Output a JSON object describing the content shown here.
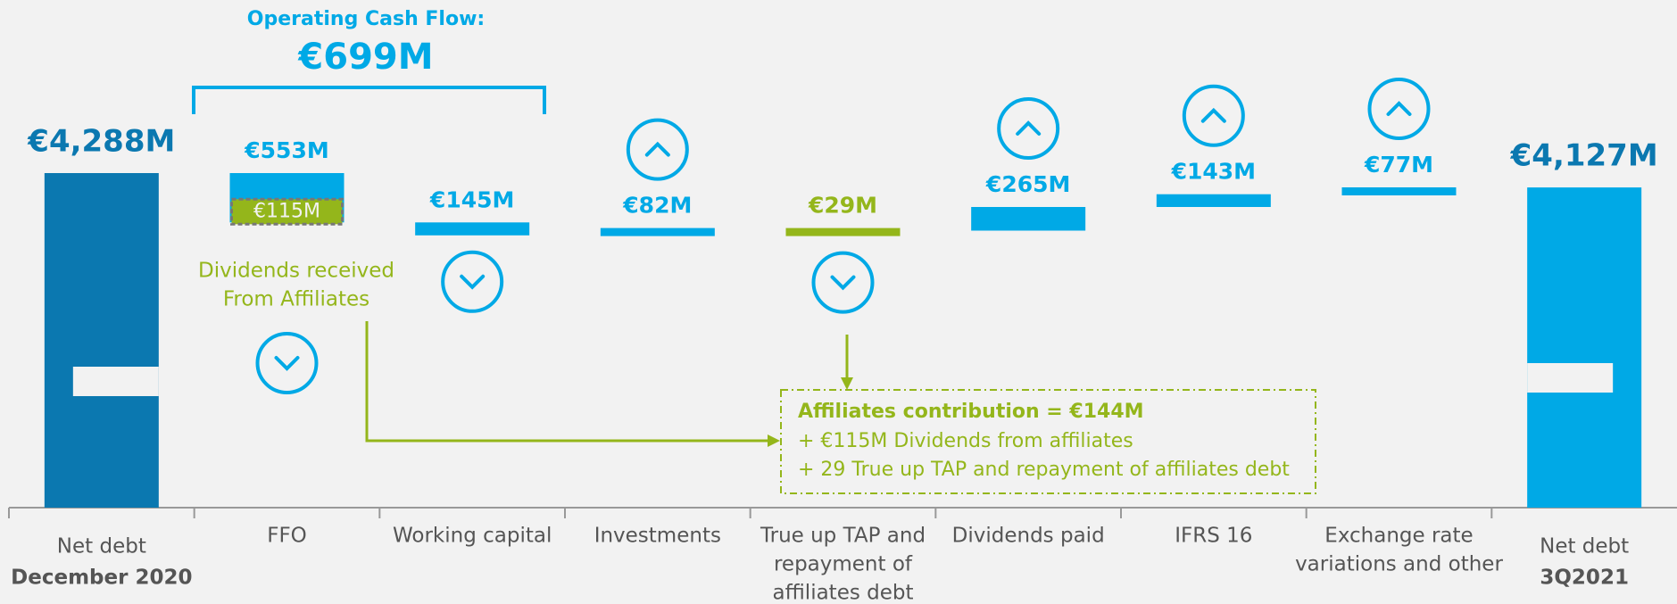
{
  "chart_data": {
    "type": "waterfall",
    "categories": [
      [
        "Net debt",
        "December 2020"
      ],
      [
        "FFO"
      ],
      [
        "Working capital"
      ],
      [
        "Investments"
      ],
      [
        "True up TAP and",
        "repayment of",
        "affiliates debt"
      ],
      [
        "Dividends paid"
      ],
      [
        "IFRS 16"
      ],
      [
        "Exchange rate",
        "variations and other"
      ],
      [
        "Net debt",
        "3Q2021"
      ]
    ],
    "values": [
      4288,
      -553,
      -145,
      82,
      -29,
      265,
      143,
      77,
      4127
    ],
    "value_labels": [
      "€4,288M",
      "€553M",
      "€145M",
      "€82M",
      "€29M",
      "€265M",
      "€143M",
      "€77M",
      "€4,127M"
    ],
    "colors": [
      "#0b78b0",
      "#00a9e6",
      "#00a9e6",
      "#00a9e6",
      "#94b61b",
      "#00a9e6",
      "#00a9e6",
      "#00a9e6",
      "#00a9e6"
    ],
    "dividends_received": {
      "lines": [
        "Dividends received",
        "From Affiliates"
      ],
      "value": 115,
      "value_label": "€115M",
      "color": "#94b61b"
    },
    "operating_cash_flow": {
      "label": "Operating Cash Flow:",
      "value": 699,
      "value_label": "€699M"
    },
    "affiliates_contribution": [
      "Affiliates contribution = €144M",
      "+ €115M Dividends from affiliates",
      "+ 29 True up TAP and repayment of affiliates debt"
    ]
  }
}
